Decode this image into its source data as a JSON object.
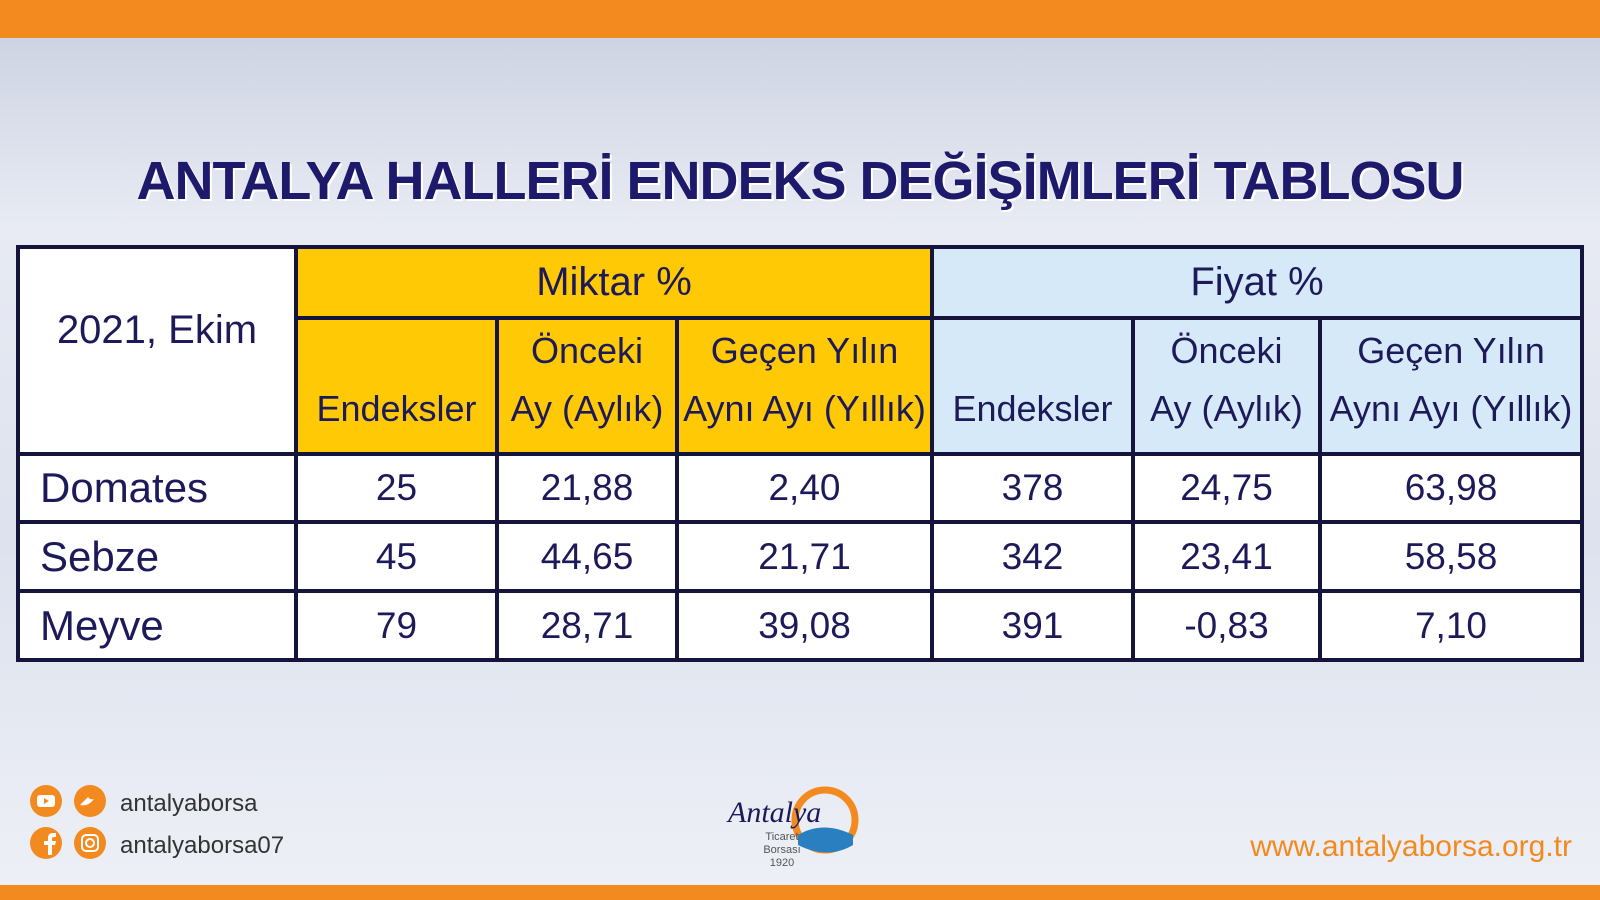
{
  "header": {
    "title": "ANTALYA HALLERİ ENDEKS DEĞİŞİMLERİ TABLOSU"
  },
  "table": {
    "corner": "2021, Ekim",
    "groups": [
      {
        "title": "Miktar %",
        "columns": [
          [
            "Endeksler"
          ],
          [
            "Önceki",
            "Ay (Aylık)"
          ],
          [
            "Geçen Yılın",
            "Aynı Ayı (Yıllık)"
          ]
        ]
      },
      {
        "title": "Fiyat %",
        "columns": [
          [
            "Endeksler"
          ],
          [
            "Önceki",
            "Ay (Aylık)"
          ],
          [
            "Geçen Yılın",
            "Aynı Ayı (Yıllık)"
          ]
        ]
      }
    ],
    "rows": [
      [
        "Domates",
        "25",
        "21,88",
        "2,40",
        "378",
        "24,75",
        "63,98"
      ],
      [
        "Sebze",
        "45",
        "44,65",
        "21,71",
        "342",
        "23,41",
        "58,58"
      ],
      [
        "Meyve",
        "79",
        "28,71",
        "39,08",
        "391",
        "-0,83",
        "7,10"
      ]
    ]
  },
  "footer": {
    "social": [
      "antalyaborsa",
      "antalyaborsa07"
    ],
    "logo": {
      "name": "Antalya",
      "line1": "Ticaret",
      "line2": "Borsası",
      "year": "1920"
    },
    "website": "www.antalyaborsa.org.tr"
  }
}
